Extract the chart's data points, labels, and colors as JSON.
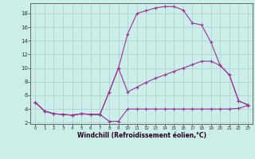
{
  "xlabel": "Windchill (Refroidissement éolien,°C)",
  "bg_color": "#cceee8",
  "line_color": "#993399",
  "grid_color": "#aacccc",
  "axis_color": "#666666",
  "xlim": [
    -0.5,
    23.5
  ],
  "ylim": [
    1.8,
    19.5
  ],
  "xticks": [
    0,
    1,
    2,
    3,
    4,
    5,
    6,
    7,
    8,
    9,
    10,
    11,
    12,
    13,
    14,
    15,
    16,
    17,
    18,
    19,
    20,
    21,
    22,
    23
  ],
  "yticks": [
    2,
    4,
    6,
    8,
    10,
    12,
    14,
    16,
    18
  ],
  "line1_x": [
    0,
    1,
    2,
    3,
    4,
    5,
    6,
    7,
    8,
    9,
    10,
    11,
    12,
    13,
    14,
    15,
    16,
    17,
    18,
    19,
    20,
    21,
    22,
    23
  ],
  "line1_y": [
    5.0,
    3.7,
    3.3,
    3.2,
    3.1,
    3.3,
    3.2,
    3.2,
    2.2,
    2.2,
    4.0,
    4.0,
    4.0,
    4.0,
    4.0,
    4.0,
    4.0,
    4.0,
    4.0,
    4.0,
    4.0,
    4.0,
    4.1,
    4.5
  ],
  "line2_x": [
    0,
    1,
    2,
    3,
    4,
    5,
    6,
    7,
    8,
    9,
    10,
    11,
    12,
    13,
    14,
    15,
    16,
    17,
    18,
    19,
    20,
    21,
    22,
    23
  ],
  "line2_y": [
    5.0,
    3.7,
    3.3,
    3.2,
    3.1,
    3.3,
    3.2,
    3.2,
    6.5,
    10.0,
    6.5,
    7.2,
    7.9,
    8.5,
    9.0,
    9.5,
    10.0,
    10.5,
    11.0,
    11.0,
    10.4,
    9.0,
    5.2,
    4.6
  ],
  "line3_x": [
    0,
    1,
    2,
    3,
    4,
    5,
    6,
    7,
    8,
    9,
    10,
    11,
    12,
    13,
    14,
    15,
    16,
    17,
    18,
    19,
    20,
    21,
    22,
    23
  ],
  "line3_y": [
    5.0,
    3.7,
    3.3,
    3.2,
    3.1,
    3.3,
    3.2,
    3.2,
    6.5,
    10.0,
    15.0,
    18.0,
    18.4,
    18.8,
    19.0,
    19.0,
    18.5,
    16.6,
    16.3,
    13.8,
    10.4,
    9.0,
    5.2,
    4.6
  ]
}
